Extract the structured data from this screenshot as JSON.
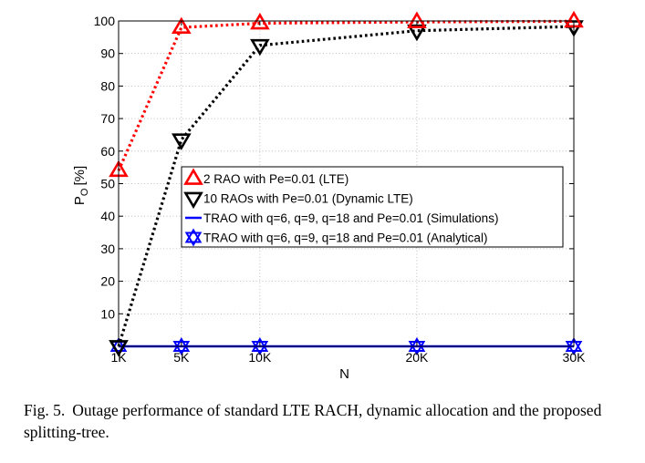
{
  "chart_data": {
    "type": "line",
    "xlabel": "N",
    "ylabel_main": "P",
    "ylabel_sub": "O",
    "ylabel_unit": "[%]",
    "x": [
      1,
      5,
      10,
      20,
      30
    ],
    "xtick_labels": [
      "1K",
      "5K",
      "10K",
      "20K",
      "30K"
    ],
    "xlim": [
      1,
      30
    ],
    "ylim": [
      0,
      100
    ],
    "yticks": [
      10,
      20,
      30,
      40,
      50,
      60,
      70,
      80,
      90,
      100
    ],
    "grid": true,
    "legend_placement": "center",
    "series": [
      {
        "name": "2 RAO with Pe=0.01 (LTE)",
        "color": "#ff0000",
        "line": "dotted",
        "marker": "triangle-up",
        "values": [
          54,
          98,
          99.3,
          99.7,
          99.9
        ]
      },
      {
        "name": "10 RAOs with Pe=0.01 (Dynamic LTE)",
        "color": "#000000",
        "line": "dotted",
        "marker": "triangle-down",
        "values": [
          0,
          63.5,
          92.5,
          97,
          98.3
        ]
      },
      {
        "name": "TRAO with q=6, q=9, q=18 and Pe=0.01 (Simulations)",
        "color": "#0000ff",
        "line": "solid",
        "marker": "none",
        "values": [
          0,
          0,
          0,
          0,
          0
        ]
      },
      {
        "name": "TRAO with q=6, q=9, q=18 and Pe=0.01 (Analytical)",
        "color": "#0000ff",
        "line": "none",
        "marker": "hexagram",
        "values": [
          0,
          0,
          0,
          0,
          0
        ]
      }
    ]
  },
  "caption": {
    "label": "Fig. 5.",
    "text": "Outage performance of standard LTE RACH, dynamic allocation and the proposed splitting-tree."
  }
}
